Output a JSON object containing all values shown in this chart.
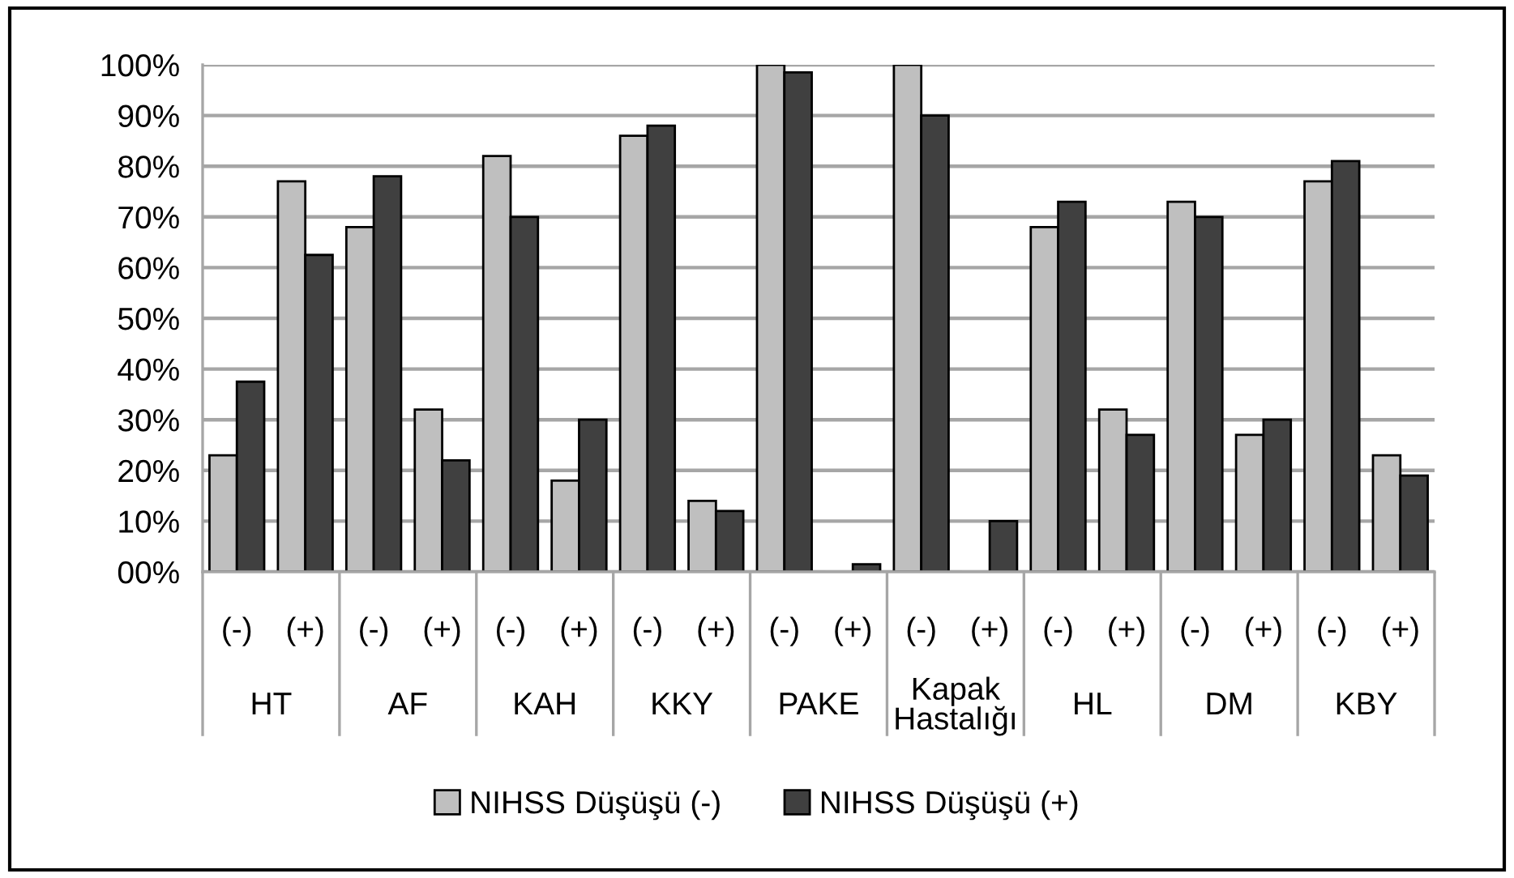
{
  "chart_data": {
    "type": "bar",
    "categories": [
      "(-)",
      "(+)",
      "(-)",
      "(+)",
      "(-)",
      "(+)",
      "(-)",
      "(+)",
      "(-)",
      "(+)",
      "(-)",
      "(+)",
      "(-)",
      "(+)",
      "(-)",
      "(+)",
      "(-)",
      "(+)"
    ],
    "annotations": [
      "HT",
      "AF",
      "KAH",
      "KKY",
      "PAKE",
      "Kapak Hastalığı",
      "HL",
      "DM",
      "KBY"
    ],
    "series": [
      {
        "name": "NIHSS Düşüşü (-)",
        "color": "#bfbfbf",
        "values": [
          23,
          77,
          68,
          32,
          82,
          18,
          86,
          14,
          100,
          0,
          100,
          0,
          68,
          32,
          73,
          27,
          77,
          23
        ]
      },
      {
        "name": "NIHSS Düşüşü (+)",
        "color": "#404040",
        "values": [
          37.5,
          62.5,
          78,
          22,
          70,
          30,
          88,
          12,
          98.5,
          1.5,
          90,
          10,
          73,
          27,
          70,
          30,
          81,
          19
        ]
      }
    ],
    "ylim": [
      0,
      100
    ],
    "yticks": [
      {
        "value": 0,
        "label": "00%"
      },
      {
        "value": 10,
        "label": "10%"
      },
      {
        "value": 20,
        "label": "20%"
      },
      {
        "value": 30,
        "label": "30%"
      },
      {
        "value": 40,
        "label": "40%"
      },
      {
        "value": 50,
        "label": "50%"
      },
      {
        "value": 60,
        "label": "60%"
      },
      {
        "value": 70,
        "label": "70%"
      },
      {
        "value": 80,
        "label": "80%"
      },
      {
        "value": 90,
        "label": "90%"
      },
      {
        "value": 100,
        "label": "100%"
      }
    ],
    "grid": "y",
    "legend": "bottom"
  }
}
